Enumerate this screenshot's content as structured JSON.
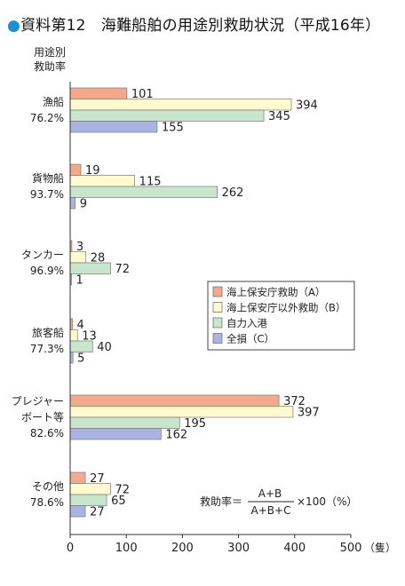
{
  "title": {
    "bullet": "●",
    "text": "資料第12　海難船舶の用途別救助状況（平成16年）"
  },
  "chart_data": {
    "type": "bar",
    "orientation": "horizontal",
    "category_header": [
      "用途別",
      "救助率"
    ],
    "categories": [
      {
        "name_lines": [
          "漁船"
        ],
        "rate": "76.2%"
      },
      {
        "name_lines": [
          "貨物船"
        ],
        "rate": "93.7%"
      },
      {
        "name_lines": [
          "タンカー"
        ],
        "rate": "96.9%"
      },
      {
        "name_lines": [
          "旅客船"
        ],
        "rate": "77.3%"
      },
      {
        "name_lines": [
          "プレジャー",
          "ボート等"
        ],
        "rate": "82.6%"
      },
      {
        "name_lines": [
          "その他"
        ],
        "rate": "78.6%"
      }
    ],
    "series": [
      {
        "name": "海上保安庁救助（A）",
        "color": "#f3a98b",
        "values": [
          101,
          19,
          3,
          4,
          372,
          27
        ]
      },
      {
        "name": "海上保安庁以外救助（B）",
        "color": "#fffbcf",
        "values": [
          394,
          115,
          28,
          13,
          397,
          72
        ]
      },
      {
        "name": "自力入港",
        "color": "#c7e6cc",
        "values": [
          345,
          262,
          72,
          40,
          195,
          65
        ]
      },
      {
        "name": "全損（C）",
        "color": "#a9b4e3",
        "values": [
          155,
          9,
          1,
          5,
          162,
          27
        ]
      }
    ],
    "xlim": [
      0,
      500
    ],
    "xticks": [
      0,
      100,
      200,
      300,
      400,
      500
    ],
    "x_unit": "（隻）",
    "legend_position": "right",
    "formula": {
      "lhs": "救助率＝",
      "numerator": "A+B",
      "denominator": "A+B+C",
      "rhs": "×100（%）"
    }
  }
}
